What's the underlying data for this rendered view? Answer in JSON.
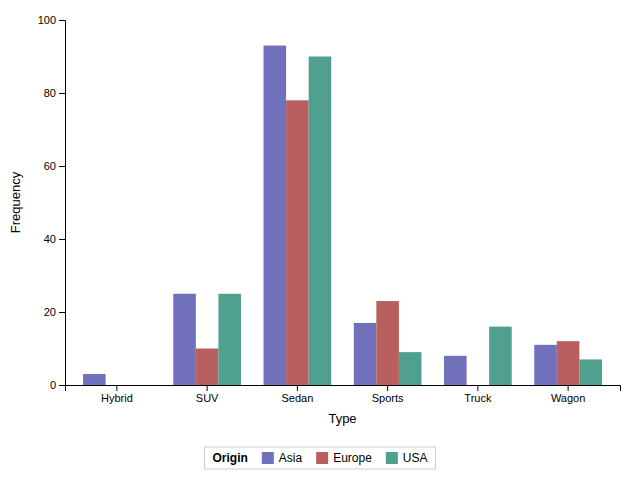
{
  "chart_data": {
    "type": "bar",
    "categories": [
      "Hybrid",
      "SUV",
      "Sedan",
      "Sports",
      "Truck",
      "Wagon"
    ],
    "series": [
      {
        "name": "Asia",
        "color": "#7070BB",
        "values": [
          3,
          25,
          93,
          17,
          8,
          11
        ]
      },
      {
        "name": "Europe",
        "color": "#B86060",
        "values": [
          0,
          10,
          78,
          23,
          0,
          12
        ]
      },
      {
        "name": "USA",
        "color": "#50A090",
        "values": [
          0,
          25,
          90,
          9,
          16,
          7
        ]
      }
    ],
    "xlabel": "Type",
    "ylabel": "Frequency",
    "ylim": [
      0,
      100
    ],
    "yticks": [
      0,
      20,
      40,
      60,
      80,
      100
    ],
    "grid": false,
    "legend": "bottom",
    "legend_title": "Origin"
  }
}
